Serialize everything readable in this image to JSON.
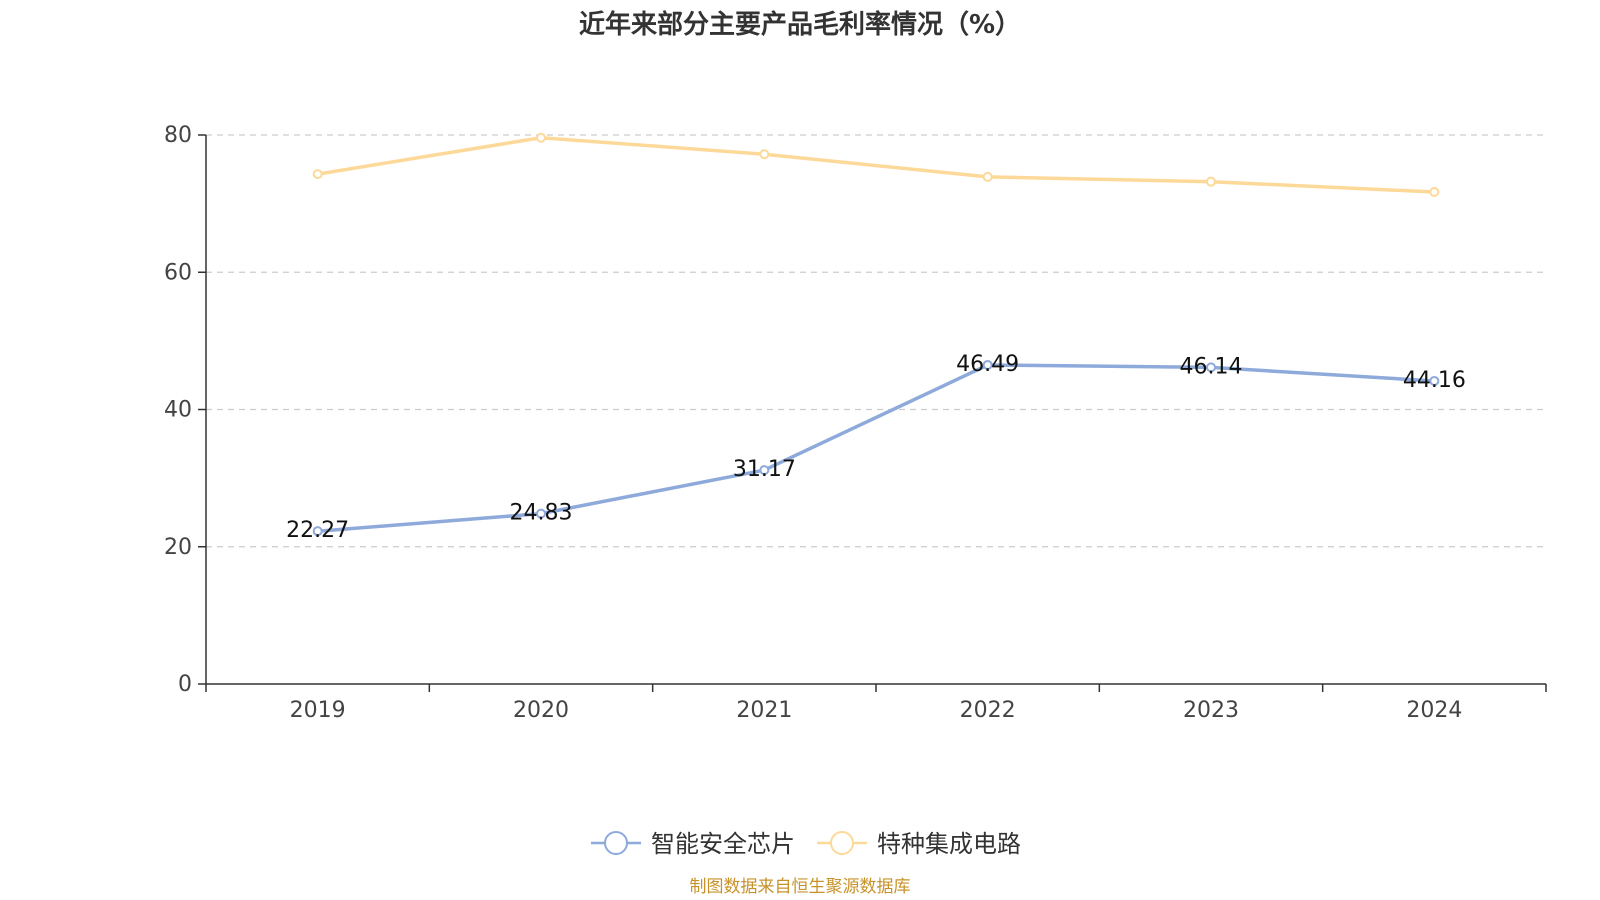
{
  "chart_data": {
    "type": "line",
    "title": "近年来部分主要产品毛利率情况（%）",
    "categories": [
      "2019",
      "2020",
      "2021",
      "2022",
      "2023",
      "2024"
    ],
    "ylim": [
      0,
      80
    ],
    "yticks": [
      0,
      20,
      40,
      60,
      80
    ],
    "grid": true,
    "legend_position": "bottom-center",
    "series": [
      {
        "name": "智能安全芯片",
        "values": [
          22.27,
          24.83,
          31.17,
          46.49,
          46.14,
          44.16
        ],
        "labels": [
          "22.27",
          "24.83",
          "31.17",
          "46.49",
          "46.14",
          "44.16"
        ],
        "show_labels": true,
        "color": "#8eaadb"
      },
      {
        "name": "特种集成电路",
        "values": [
          74.3,
          79.6,
          77.2,
          73.9,
          73.2,
          71.7
        ],
        "show_labels": false,
        "color": "#fdd999"
      }
    ],
    "source": "制图数据来自恒生聚源数据库",
    "source_color": "#c8922a"
  }
}
